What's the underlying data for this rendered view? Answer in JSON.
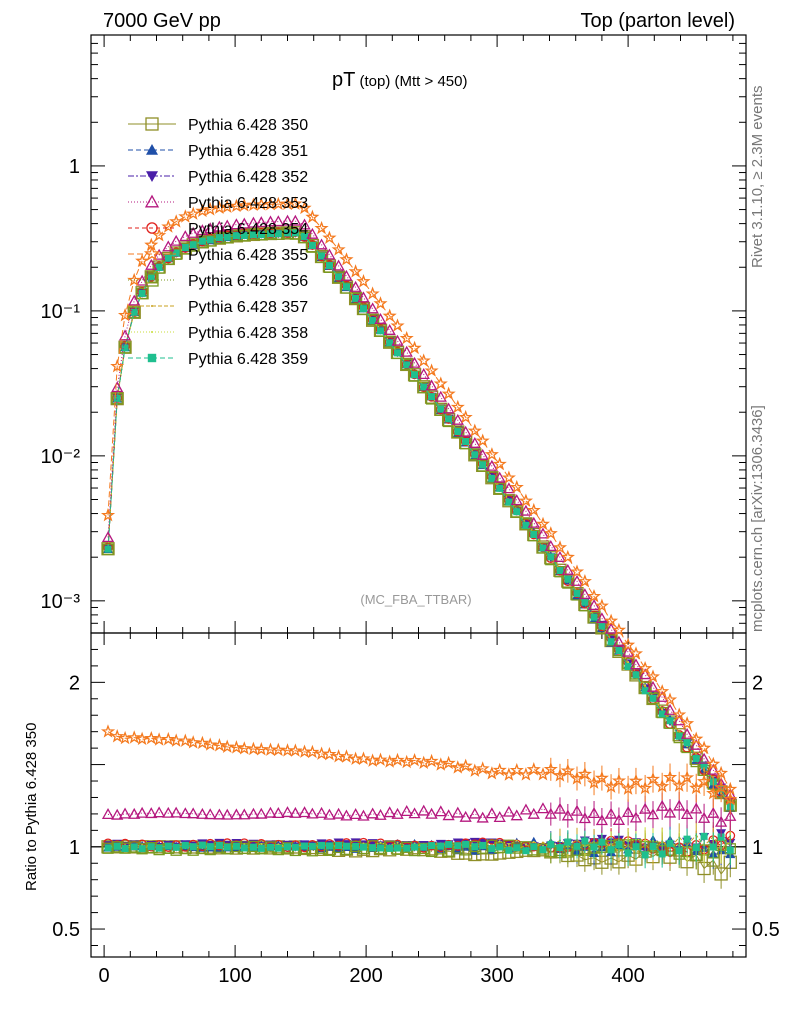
{
  "header": {
    "left": "7000 GeV pp",
    "right": "Top (parton level)"
  },
  "plot_title": {
    "main": "pT",
    "sub1": " (top)",
    "sub2": " (Mtt > 450)"
  },
  "side_labels": {
    "rivet": "Rivet 3.1.10, ≥ 2.3M events",
    "mcplots": "mcplots.cern.ch [arXiv:1306.3436]"
  },
  "watermark": "(MC_FBA_TTBAR)",
  "ratio_ylabel": "Ratio to Pythia 6.428 350",
  "chart_data": {
    "type": "line",
    "x": [
      3,
      10,
      16,
      23,
      29,
      36,
      42,
      49,
      55,
      62,
      68,
      75,
      81,
      88,
      94,
      101,
      107,
      114,
      120,
      127,
      133,
      140,
      146,
      153,
      159,
      166,
      172,
      179,
      185,
      192,
      198,
      205,
      211,
      218,
      224,
      231,
      237,
      244,
      250,
      257,
      263,
      270,
      276,
      283,
      289,
      296,
      302,
      309,
      315,
      322,
      328,
      335,
      341,
      348,
      354,
      361,
      367,
      374,
      380,
      387,
      393,
      400,
      406,
      413,
      419,
      426,
      432,
      439,
      445,
      452,
      458,
      465,
      471,
      478
    ],
    "xlim": [
      -10,
      490
    ],
    "xticks": [
      0,
      100,
      200,
      300,
      400
    ],
    "main_panel": {
      "yscale": "log",
      "ylim": [
        0.0006,
        8
      ],
      "yticks": [
        {
          "value": 1,
          "label": "1"
        },
        {
          "value": 0.1,
          "label": "10⁻¹"
        },
        {
          "value": 0.01,
          "label": "10⁻²"
        },
        {
          "value": 0.001,
          "label": "10⁻³"
        }
      ]
    },
    "ratio_panel": {
      "ylim": [
        0.33,
        2.3
      ],
      "yticks": [
        0.5,
        1,
        2
      ],
      "reference_line": 1
    },
    "series": [
      {
        "name": "Pythia 6.428 350",
        "color": "#8f8f27",
        "marker": "square-open",
        "dash": "",
        "ratio_level": 0.97,
        "ratio_slope": -0.06
      },
      {
        "name": "Pythia 6.428 351",
        "color": "#1f4fa8",
        "marker": "triangle-up",
        "dash": "5,3",
        "ratio_level": 1.0,
        "ratio_slope": 0.0
      },
      {
        "name": "Pythia 6.428 352",
        "color": "#4a1fa8",
        "marker": "triangle-down",
        "dash": "6,2,2,2",
        "ratio_level": 1.01,
        "ratio_slope": 0.01
      },
      {
        "name": "Pythia 6.428 353",
        "color": "#b5187f",
        "marker": "triangle-open",
        "dash": "1,2",
        "ratio_level": 1.2,
        "ratio_slope": 0.0
      },
      {
        "name": "Pythia 6.428 354",
        "color": "#e0201b",
        "marker": "circle-open",
        "dash": "4,3",
        "ratio_level": 1.01,
        "ratio_slope": 0.0
      },
      {
        "name": "Pythia 6.428 355",
        "color": "#f47a1f",
        "marker": "star-open",
        "dash": "6,3",
        "ratio_level": 1.68,
        "ratio_slope": -0.34
      },
      {
        "name": "Pythia 6.428 356",
        "color": "#7a9a1f",
        "marker": "square-open",
        "dash": "1,2",
        "ratio_level": 0.99,
        "ratio_slope": 0.0
      },
      {
        "name": "Pythia 6.428 357",
        "color": "#c8a21f",
        "marker": "none",
        "dash": "4,2",
        "ratio_level": 1.0,
        "ratio_slope": 0.01
      },
      {
        "name": "Pythia 6.428 358",
        "color": "#c8de3a",
        "marker": "none",
        "dash": "1,2",
        "ratio_level": 1.0,
        "ratio_slope": 0.02
      },
      {
        "name": "Pythia 6.428 359",
        "color": "#1fbf8f",
        "marker": "square-filled",
        "dash": "5,3",
        "ratio_level": 1.0,
        "ratio_slope": 0.0
      }
    ]
  }
}
